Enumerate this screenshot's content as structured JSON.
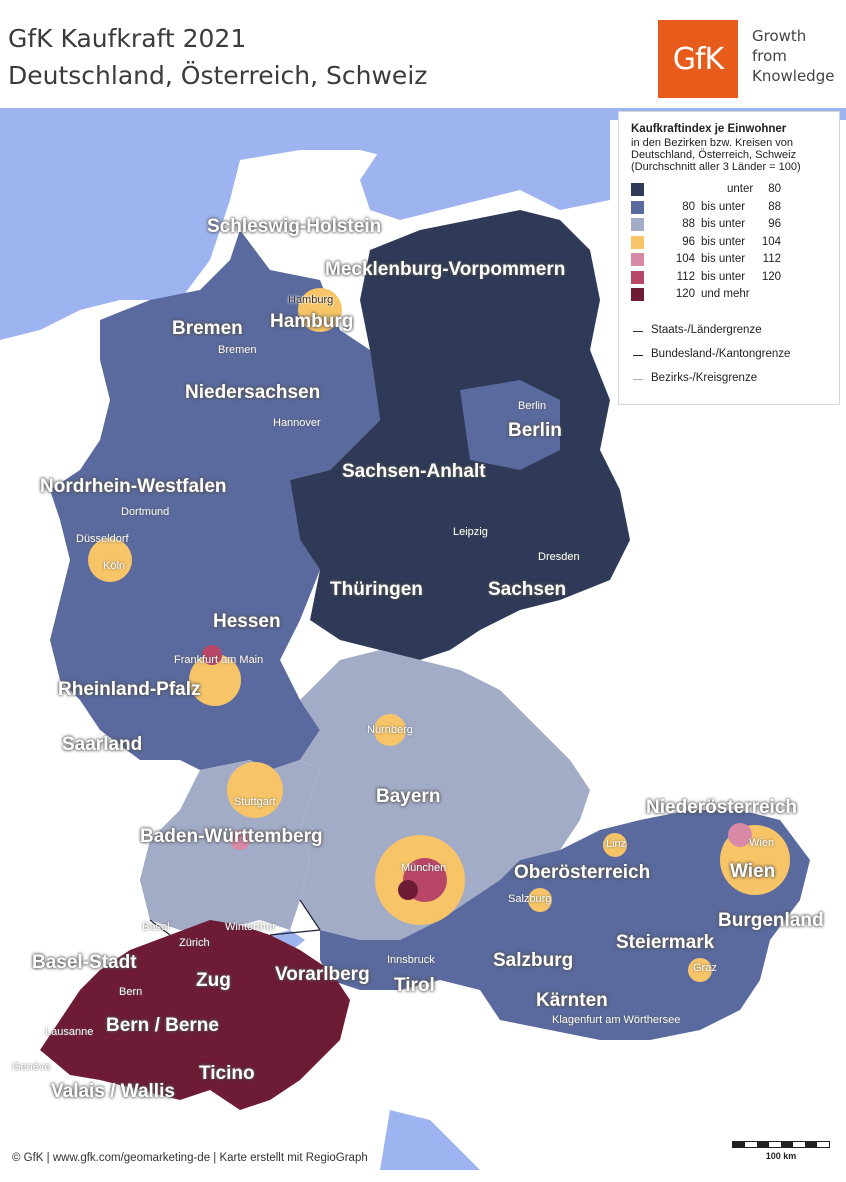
{
  "title_line1": "GfK Kaufkraft 2021",
  "title_line2": "Deutschland, Österreich, Schweiz",
  "logo_text": "GfK",
  "tagline": [
    "Growth",
    "from",
    "Knowledge"
  ],
  "legend": {
    "heading": "Kaufkraftindex je Einwohner",
    "subheading": "in den Bezirken bzw. Kreisen von Deutschland, Österreich, Schweiz (Durchschnitt aller 3 Länder = 100)",
    "classes": [
      {
        "low": "",
        "mid": "unter",
        "high": "80",
        "color": "#2e3a57"
      },
      {
        "low": "80",
        "mid": "bis unter",
        "high": "88",
        "color": "#5a6a9e"
      },
      {
        "low": "88",
        "mid": "bis unter",
        "high": "96",
        "color": "#a3acc7"
      },
      {
        "low": "96",
        "mid": "bis unter",
        "high": "104",
        "color": "#f7c567"
      },
      {
        "low": "104",
        "mid": "bis unter",
        "high": "112",
        "color": "#d98aa6"
      },
      {
        "low": "112",
        "mid": "bis unter",
        "high": "120",
        "color": "#b84767"
      },
      {
        "low": "120",
        "mid": "und mehr",
        "high": "",
        "color": "#6e1c36"
      }
    ],
    "borders": [
      {
        "label": "Staats-/Ländergrenze",
        "color": "#333333"
      },
      {
        "label": "Bundesland-/Kantongrenze",
        "color": "#1c2233"
      },
      {
        "label": "Bezirks-/Kreisgrenze",
        "color": "#a9b0c0"
      }
    ]
  },
  "regions": [
    "Schleswig-Holstein",
    "Mecklenburg-Vorpommern",
    "Bremen",
    "Hamburg",
    "Niedersachsen",
    "Berlin",
    "Sachsen-Anhalt",
    "Nordrhein-Westfalen",
    "Thüringen",
    "Sachsen",
    "Hessen",
    "Rheinland-Pfalz",
    "Saarland",
    "Bayern",
    "Baden-Württemberg",
    "Niederösterreich",
    "Oberösterreich",
    "Wien",
    "Burgenland",
    "Steiermark",
    "Salzburg",
    "Tirol",
    "Vorarlberg",
    "Kärnten",
    "Basel-Stadt",
    "Zug",
    "Bern / Berne",
    "Valais / Wallis",
    "Ticino"
  ],
  "cities": [
    "Hamburg",
    "Bremen",
    "Hannover",
    "Berlin",
    "Dortmund",
    "Düsseldorf",
    "Köln",
    "Leipzig",
    "Dresden",
    "Frankfurt am Main",
    "Nürnberg",
    "Stuttgart",
    "München",
    "Linz",
    "Wien",
    "Salzburg",
    "Innsbruck",
    "Graz",
    "Klagenfurt am Wörthersee",
    "Basel",
    "Zürich",
    "Winterthur",
    "Bern",
    "Lausanne",
    "Genève"
  ],
  "footer": "© GfK | www.gfk.com/geomarketing-de | Karte erstellt mit RegioGraph",
  "scale_label": "100 km",
  "colors": {
    "sea": "#9db4f0",
    "neighbor_land": "#ffffff",
    "title_text": "#3b3b3b",
    "label_text": "#ffffff"
  }
}
